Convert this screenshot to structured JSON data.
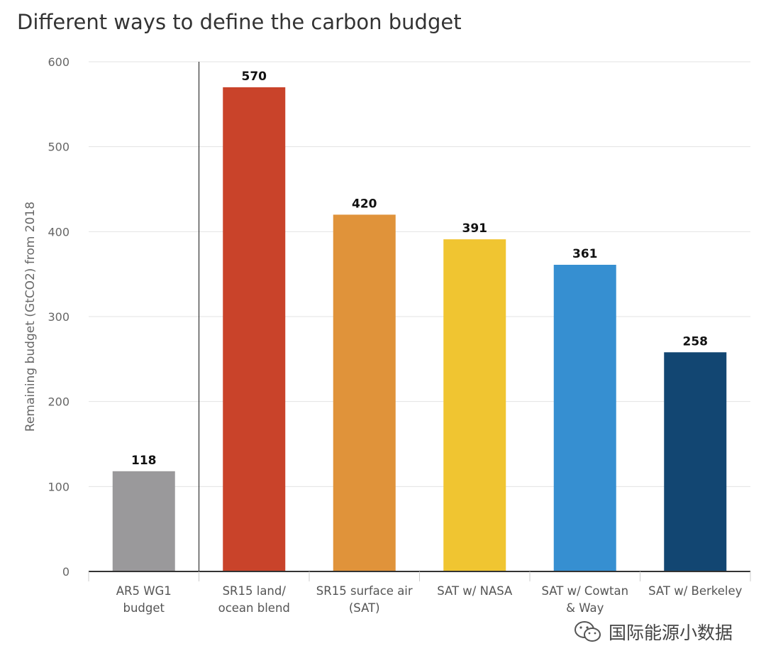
{
  "chart_data": {
    "type": "bar",
    "title": "Different ways to define the carbon budget",
    "ylabel": "Remaining budget (GtCO2) from 2018",
    "xlabel": "",
    "ylim": [
      0,
      600
    ],
    "yticks": [
      0,
      100,
      200,
      300,
      400,
      500,
      600
    ],
    "grid": true,
    "categories": [
      [
        "AR5 WG1",
        "budget"
      ],
      [
        "SR15 land/",
        "ocean blend"
      ],
      [
        "SR15 surface air",
        "(SAT)"
      ],
      [
        "SAT w/ NASA"
      ],
      [
        "SAT w/ Cowtan",
        "& Way"
      ],
      [
        "SAT w/ Berkeley"
      ]
    ],
    "values": [
      118,
      570,
      420,
      391,
      361,
      258
    ],
    "colors": [
      "#9a999b",
      "#c9432a",
      "#e0933a",
      "#f0c531",
      "#368fd1",
      "#124672"
    ]
  },
  "watermark": {
    "text": "国际能源小数据",
    "icon": "wechat-icon"
  }
}
